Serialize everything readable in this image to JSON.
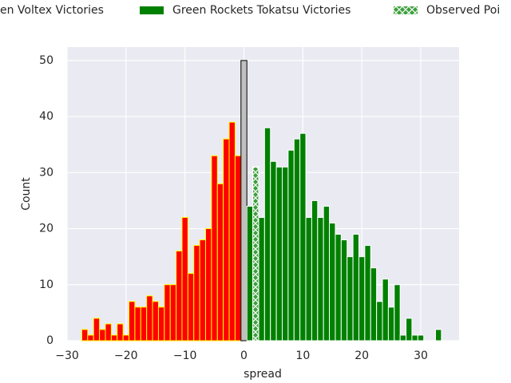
{
  "chart_data": {
    "type": "histogram",
    "x_label": "spread",
    "y_label": "Count",
    "xlim": [
      -30,
      36.5
    ],
    "ylim": [
      0,
      52.4
    ],
    "xticks": [
      {
        "value": -30,
        "label": "−30"
      },
      {
        "value": -20,
        "label": "−20"
      },
      {
        "value": -10,
        "label": "−10"
      },
      0,
      10,
      20,
      30
    ],
    "yticks": [
      0,
      10,
      20,
      30,
      40,
      50
    ],
    "grid": true,
    "legend": "top",
    "background": "#eaeaf2",
    "series": [
      {
        "name": "en Voltex Victories",
        "color": "#ff0000",
        "edgecolor": "#ffff00",
        "bins": [
          -27.5,
          -26.5,
          -25.5,
          -24.5,
          -23.5,
          -22.5,
          -21.5,
          -20.5,
          -19.5,
          -18.5,
          -17.5,
          -16.5,
          -15.5,
          -14.5,
          -13.5,
          -12.5,
          -11.5,
          -10.5,
          -9.5,
          -8.5,
          -7.5,
          -6.5,
          -5.5,
          -4.5,
          -3.5,
          -2.5,
          -1.5,
          -0.5
        ],
        "values": [
          2,
          1,
          4,
          2,
          3,
          1,
          3,
          1,
          7,
          6,
          6,
          8,
          7,
          6,
          10,
          10,
          16,
          22,
          12,
          17,
          18,
          20,
          33,
          28,
          36,
          39,
          33
        ]
      },
      {
        "color": "#c0c0c0",
        "edgecolor": "#000000",
        "bins": [
          -0.5,
          0.5
        ],
        "values": [
          50
        ]
      },
      {
        "name": "Green Rockets Tokatsu Victories",
        "color": "#008000",
        "edgecolor": "#ffffff",
        "bins": [
          0.5,
          1.5,
          2.5,
          3.5,
          4.5,
          5.5,
          6.5,
          7.5,
          8.5,
          9.5,
          10.5,
          11.5,
          12.5,
          13.5,
          14.5,
          15.5,
          16.5,
          17.5,
          18.5,
          19.5,
          20.5,
          21.5,
          22.5,
          23.5,
          24.5,
          25.5,
          26.5,
          27.5,
          28.5,
          29.5,
          30.5,
          31.5,
          32.5,
          33.5
        ],
        "values": [
          24,
          31,
          22,
          38,
          32,
          31,
          31,
          34,
          36,
          37,
          22,
          25,
          22,
          24,
          21,
          19,
          18,
          15,
          19,
          15,
          17,
          13,
          7,
          11,
          6,
          10,
          1,
          4,
          1,
          1,
          0,
          0,
          2
        ]
      },
      {
        "name": "Observed Poi",
        "color": "#3ca03c",
        "edgecolor": "#ffffff",
        "hatch": "x",
        "bins": [
          1.5,
          2.5
        ],
        "values": [
          31
        ]
      }
    ]
  }
}
